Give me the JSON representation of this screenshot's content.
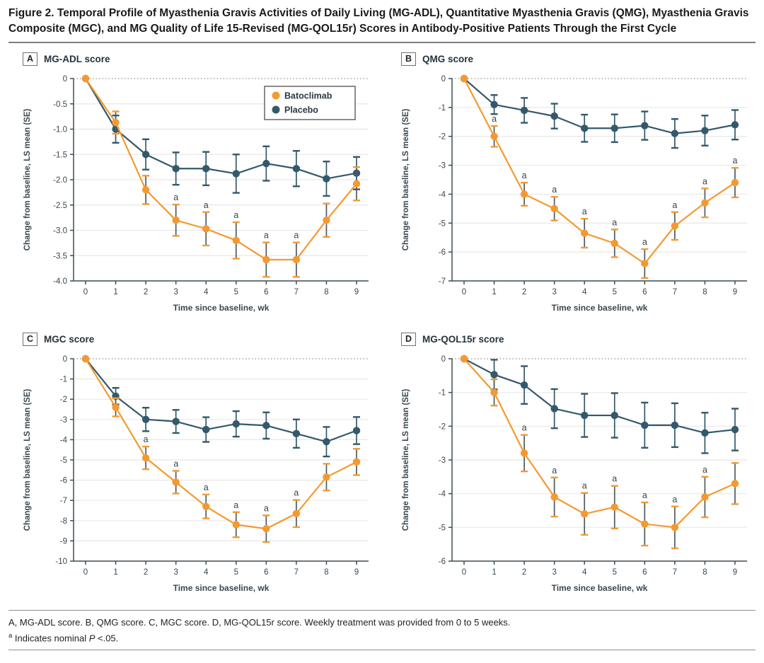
{
  "figure": {
    "title": "Figure 2. Temporal Profile of Myasthenia Gravis Activities of Daily Living (MG-ADL), Quantitative Myasthenia Gravis (QMG), Myasthenia Gravis Composite (MGC), and MG Quality of Life 15-Revised (MG-QOL15r) Scores in Antibody-Positive Patients Through the First Cycle",
    "footnote_line1": "A, MG-ADL score. B, QMG score. C, MGC score. D, MG-QOL15r score. Weekly treatment was provided from 0 to 5 weeks.",
    "footnote2_sup": "a",
    "footnote2_text": " Indicates nominal ",
    "footnote2_italic": "P",
    "footnote2_end": " <.05."
  },
  "legend": {
    "position": "upper-right-panel-A",
    "items": [
      {
        "label": "Batoclimab",
        "color": "#F5992F"
      },
      {
        "label": "Placebo",
        "color": "#33596B"
      }
    ]
  },
  "colors": {
    "batoclimab": "#F5992F",
    "placebo": "#33596B",
    "error_stem": "#4E5C63",
    "grid": "#E8E8E8",
    "zero_line": "#8F8F8F",
    "axis": "#3F4E55",
    "tick_text": "#39474F",
    "sig_text": "#37454D"
  },
  "chart_data": [
    {
      "panel": "A",
      "title": "MG-ADL score",
      "type": "line",
      "xlabel": "Time since baseline, wk",
      "ylabel": "Change from baseline, LS mean (SE)",
      "x": [
        0,
        1,
        2,
        3,
        4,
        5,
        6,
        7,
        8,
        9
      ],
      "ylim": [
        -4.0,
        0
      ],
      "yticks": [
        0,
        -0.5,
        -1.0,
        -1.5,
        -2.0,
        -2.5,
        -3.0,
        -3.5,
        -4.0
      ],
      "ytick_labels": [
        "0",
        "-0.5",
        "-1.0",
        "-1.5",
        "-2.0",
        "-2.5",
        "-3.0",
        "-3.5",
        "-4.0"
      ],
      "grid": true,
      "show_legend": true,
      "series": [
        {
          "name": "Batoclimab",
          "color": "#F5992F",
          "stem_color": "#4E5C63",
          "values": [
            0,
            -0.87,
            -2.2,
            -2.8,
            -2.97,
            -3.2,
            -3.58,
            -3.58,
            -2.8,
            -2.08
          ],
          "se": [
            0,
            0.22,
            0.28,
            0.31,
            0.33,
            0.36,
            0.34,
            0.34,
            0.33,
            0.33
          ],
          "sig_weeks": [
            3,
            4,
            5,
            6,
            7
          ]
        },
        {
          "name": "Placebo",
          "color": "#33596B",
          "stem_color": "#33596B",
          "values": [
            0,
            -1.0,
            -1.5,
            -1.78,
            -1.78,
            -1.88,
            -1.68,
            -1.78,
            -1.98,
            -1.87
          ],
          "se": [
            0,
            0.27,
            0.3,
            0.32,
            0.33,
            0.38,
            0.34,
            0.35,
            0.34,
            0.32
          ],
          "sig_weeks": []
        }
      ]
    },
    {
      "panel": "B",
      "title": "QMG score",
      "type": "line",
      "xlabel": "Time since baseline, wk",
      "ylabel": "Change from baseline, LS mean (SE)",
      "x": [
        0,
        1,
        2,
        3,
        4,
        5,
        6,
        7,
        8,
        9
      ],
      "ylim": [
        -7,
        0
      ],
      "yticks": [
        0,
        -1,
        -2,
        -3,
        -4,
        -5,
        -6,
        -7
      ],
      "ytick_labels": [
        "0",
        "-1",
        "-2",
        "-3",
        "-4",
        "-5",
        "-6",
        "-7"
      ],
      "grid": true,
      "show_legend": false,
      "series": [
        {
          "name": "Batoclimab",
          "color": "#F5992F",
          "stem_color": "#4E5C63",
          "values": [
            0,
            -2.0,
            -4.0,
            -4.5,
            -5.35,
            -5.7,
            -6.4,
            -5.1,
            -4.3,
            -3.6
          ],
          "se": [
            0,
            0.36,
            0.4,
            0.41,
            0.5,
            0.48,
            0.5,
            0.48,
            0.5,
            0.51
          ],
          "sig_weeks": [
            1,
            2,
            3,
            4,
            5,
            6,
            7,
            8,
            9
          ]
        },
        {
          "name": "Placebo",
          "color": "#33596B",
          "stem_color": "#33596B",
          "values": [
            0,
            -0.9,
            -1.1,
            -1.3,
            -1.72,
            -1.72,
            -1.63,
            -1.9,
            -1.8,
            -1.6
          ],
          "se": [
            0,
            0.33,
            0.43,
            0.43,
            0.47,
            0.48,
            0.49,
            0.5,
            0.52,
            0.51
          ],
          "sig_weeks": []
        }
      ]
    },
    {
      "panel": "C",
      "title": "MGC score",
      "type": "line",
      "xlabel": "Time since baseline, wk",
      "ylabel": "Change from baseline, LS mean (SE)",
      "x": [
        0,
        1,
        2,
        3,
        4,
        5,
        6,
        7,
        8,
        9
      ],
      "ylim": [
        -10,
        0
      ],
      "yticks": [
        0,
        -1,
        -2,
        -3,
        -4,
        -5,
        -6,
        -7,
        -8,
        -9,
        -10
      ],
      "ytick_labels": [
        "0",
        "-1",
        "-2",
        "-3",
        "-4",
        "-5",
        "-6",
        "-7",
        "-8",
        "-9",
        "-10"
      ],
      "grid": true,
      "show_legend": false,
      "series": [
        {
          "name": "Batoclimab",
          "color": "#F5992F",
          "stem_color": "#4E5C63",
          "values": [
            0,
            -2.4,
            -4.9,
            -6.1,
            -7.3,
            -8.2,
            -8.4,
            -7.65,
            -5.85,
            -5.1
          ],
          "se": [
            0,
            0.45,
            0.56,
            0.56,
            0.59,
            0.62,
            0.66,
            0.67,
            0.66,
            0.65
          ],
          "sig_weeks": [
            2,
            3,
            4,
            5,
            6,
            7
          ]
        },
        {
          "name": "Placebo",
          "color": "#33596B",
          "stem_color": "#33596B",
          "values": [
            0,
            -1.85,
            -3.0,
            -3.1,
            -3.5,
            -3.22,
            -3.3,
            -3.7,
            -4.1,
            -3.55
          ],
          "se": [
            0,
            0.41,
            0.58,
            0.57,
            0.61,
            0.63,
            0.65,
            0.7,
            0.73,
            0.67
          ],
          "sig_weeks": []
        }
      ]
    },
    {
      "panel": "D",
      "title": "MG-QOL15r score",
      "type": "line",
      "xlabel": "Time since baseline, wk",
      "ylabel": "Change from baseline, LS mean (SE)",
      "x": [
        0,
        1,
        2,
        3,
        4,
        5,
        6,
        7,
        8,
        9
      ],
      "ylim": [
        -6,
        0
      ],
      "yticks": [
        0,
        -1,
        -2,
        -3,
        -4,
        -5,
        -6
      ],
      "ytick_labels": [
        "0",
        "-1",
        "-2",
        "-3",
        "-4",
        "-5",
        "-6"
      ],
      "grid": true,
      "show_legend": false,
      "series": [
        {
          "name": "Batoclimab",
          "color": "#F5992F",
          "stem_color": "#4E5C63",
          "values": [
            0,
            -1.0,
            -2.8,
            -4.1,
            -4.6,
            -4.4,
            -4.9,
            -5.0,
            -4.1,
            -3.7
          ],
          "se": [
            0,
            0.39,
            0.54,
            0.58,
            0.62,
            0.63,
            0.64,
            0.62,
            0.6,
            0.61
          ],
          "sig_weeks": [
            2,
            3,
            4,
            5,
            6,
            7,
            8
          ]
        },
        {
          "name": "Placebo",
          "color": "#33596B",
          "stem_color": "#33596B",
          "values": [
            0,
            -0.47,
            -0.78,
            -1.48,
            -1.68,
            -1.68,
            -1.97,
            -1.97,
            -2.2,
            -2.1
          ],
          "se": [
            0,
            0.44,
            0.56,
            0.58,
            0.64,
            0.66,
            0.67,
            0.65,
            0.6,
            0.62
          ],
          "sig_weeks": []
        }
      ]
    }
  ]
}
